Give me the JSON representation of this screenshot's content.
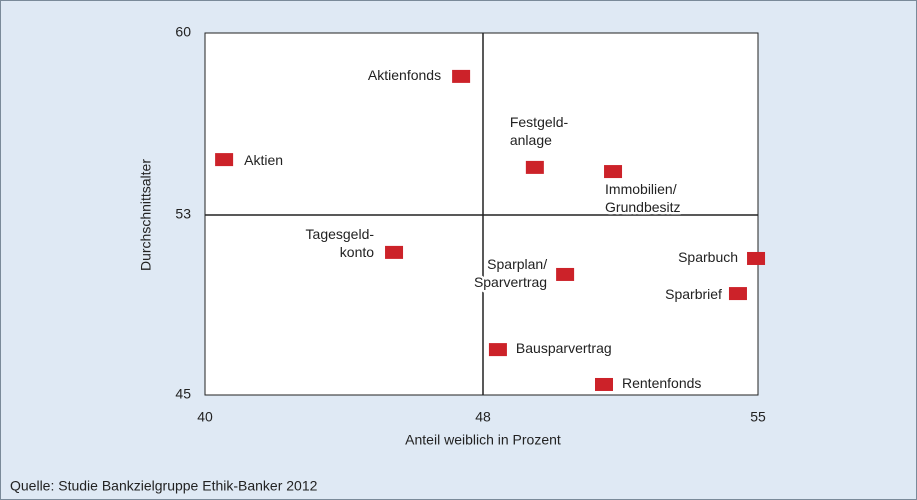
{
  "chart_data": {
    "type": "scatter",
    "xlabel": "Anteil weiblich in Prozent",
    "ylabel": "Durchschnittsalter",
    "source": "Quelle: Studie Bankzielgruppe Ethik-Banker 2012",
    "xlim": [
      40,
      55
    ],
    "xticks": [
      40,
      48,
      55
    ],
    "ylim": [
      45,
      60
    ],
    "yticks": [
      45,
      53,
      60
    ],
    "color": "#cc2229",
    "labels": [
      "Aktienfonds",
      "Aktien",
      "Festgeld-\nanlage",
      "Immobilien/\nGrundbesitz",
      "Tagesgeld-\nkonto",
      "Sparbuch",
      "Sparplan/\nSparvertrag",
      "Sparbrief",
      "Bausparvertrag",
      "Rentenfonds"
    ],
    "x": [
      47.37,
      40.55,
      49.32,
      51.31,
      45.44,
      54.95,
      50.09,
      54.49,
      48.38,
      51.08
    ],
    "y": [
      58.35,
      55.15,
      54.85,
      54.69,
      51.36,
      51.09,
      50.38,
      49.53,
      47.04,
      45.49
    ]
  }
}
